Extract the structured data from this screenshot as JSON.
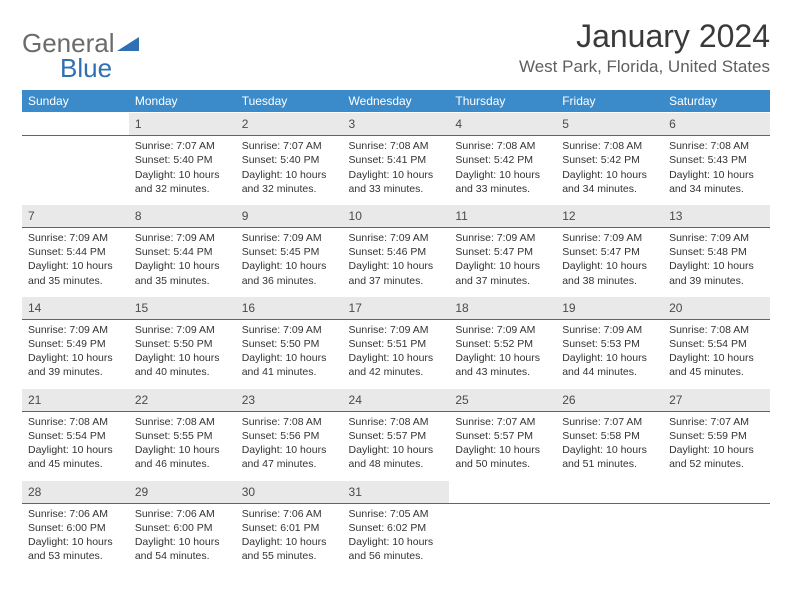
{
  "brand": {
    "part1": "General",
    "part2": "Blue",
    "color1": "#6b6b6b",
    "color2": "#2f6fb3"
  },
  "title": "January 2024",
  "location": "West Park, Florida, United States",
  "header_bg": "#3b8bca",
  "daynum_bg": "#e9e9e9",
  "rule_color": "#2f6fb3",
  "weekdays": [
    "Sunday",
    "Monday",
    "Tuesday",
    "Wednesday",
    "Thursday",
    "Friday",
    "Saturday"
  ],
  "weeks": [
    {
      "nums": [
        "",
        "1",
        "2",
        "3",
        "4",
        "5",
        "6"
      ],
      "cells": [
        null,
        {
          "sr": "Sunrise: 7:07 AM",
          "ss": "Sunset: 5:40 PM",
          "dl": "Daylight: 10 hours and 32 minutes."
        },
        {
          "sr": "Sunrise: 7:07 AM",
          "ss": "Sunset: 5:40 PM",
          "dl": "Daylight: 10 hours and 32 minutes."
        },
        {
          "sr": "Sunrise: 7:08 AM",
          "ss": "Sunset: 5:41 PM",
          "dl": "Daylight: 10 hours and 33 minutes."
        },
        {
          "sr": "Sunrise: 7:08 AM",
          "ss": "Sunset: 5:42 PM",
          "dl": "Daylight: 10 hours and 33 minutes."
        },
        {
          "sr": "Sunrise: 7:08 AM",
          "ss": "Sunset: 5:42 PM",
          "dl": "Daylight: 10 hours and 34 minutes."
        },
        {
          "sr": "Sunrise: 7:08 AM",
          "ss": "Sunset: 5:43 PM",
          "dl": "Daylight: 10 hours and 34 minutes."
        }
      ]
    },
    {
      "nums": [
        "7",
        "8",
        "9",
        "10",
        "11",
        "12",
        "13"
      ],
      "cells": [
        {
          "sr": "Sunrise: 7:09 AM",
          "ss": "Sunset: 5:44 PM",
          "dl": "Daylight: 10 hours and 35 minutes."
        },
        {
          "sr": "Sunrise: 7:09 AM",
          "ss": "Sunset: 5:44 PM",
          "dl": "Daylight: 10 hours and 35 minutes."
        },
        {
          "sr": "Sunrise: 7:09 AM",
          "ss": "Sunset: 5:45 PM",
          "dl": "Daylight: 10 hours and 36 minutes."
        },
        {
          "sr": "Sunrise: 7:09 AM",
          "ss": "Sunset: 5:46 PM",
          "dl": "Daylight: 10 hours and 37 minutes."
        },
        {
          "sr": "Sunrise: 7:09 AM",
          "ss": "Sunset: 5:47 PM",
          "dl": "Daylight: 10 hours and 37 minutes."
        },
        {
          "sr": "Sunrise: 7:09 AM",
          "ss": "Sunset: 5:47 PM",
          "dl": "Daylight: 10 hours and 38 minutes."
        },
        {
          "sr": "Sunrise: 7:09 AM",
          "ss": "Sunset: 5:48 PM",
          "dl": "Daylight: 10 hours and 39 minutes."
        }
      ]
    },
    {
      "nums": [
        "14",
        "15",
        "16",
        "17",
        "18",
        "19",
        "20"
      ],
      "cells": [
        {
          "sr": "Sunrise: 7:09 AM",
          "ss": "Sunset: 5:49 PM",
          "dl": "Daylight: 10 hours and 39 minutes."
        },
        {
          "sr": "Sunrise: 7:09 AM",
          "ss": "Sunset: 5:50 PM",
          "dl": "Daylight: 10 hours and 40 minutes."
        },
        {
          "sr": "Sunrise: 7:09 AM",
          "ss": "Sunset: 5:50 PM",
          "dl": "Daylight: 10 hours and 41 minutes."
        },
        {
          "sr": "Sunrise: 7:09 AM",
          "ss": "Sunset: 5:51 PM",
          "dl": "Daylight: 10 hours and 42 minutes."
        },
        {
          "sr": "Sunrise: 7:09 AM",
          "ss": "Sunset: 5:52 PM",
          "dl": "Daylight: 10 hours and 43 minutes."
        },
        {
          "sr": "Sunrise: 7:09 AM",
          "ss": "Sunset: 5:53 PM",
          "dl": "Daylight: 10 hours and 44 minutes."
        },
        {
          "sr": "Sunrise: 7:08 AM",
          "ss": "Sunset: 5:54 PM",
          "dl": "Daylight: 10 hours and 45 minutes."
        }
      ]
    },
    {
      "nums": [
        "21",
        "22",
        "23",
        "24",
        "25",
        "26",
        "27"
      ],
      "cells": [
        {
          "sr": "Sunrise: 7:08 AM",
          "ss": "Sunset: 5:54 PM",
          "dl": "Daylight: 10 hours and 45 minutes."
        },
        {
          "sr": "Sunrise: 7:08 AM",
          "ss": "Sunset: 5:55 PM",
          "dl": "Daylight: 10 hours and 46 minutes."
        },
        {
          "sr": "Sunrise: 7:08 AM",
          "ss": "Sunset: 5:56 PM",
          "dl": "Daylight: 10 hours and 47 minutes."
        },
        {
          "sr": "Sunrise: 7:08 AM",
          "ss": "Sunset: 5:57 PM",
          "dl": "Daylight: 10 hours and 48 minutes."
        },
        {
          "sr": "Sunrise: 7:07 AM",
          "ss": "Sunset: 5:57 PM",
          "dl": "Daylight: 10 hours and 50 minutes."
        },
        {
          "sr": "Sunrise: 7:07 AM",
          "ss": "Sunset: 5:58 PM",
          "dl": "Daylight: 10 hours and 51 minutes."
        },
        {
          "sr": "Sunrise: 7:07 AM",
          "ss": "Sunset: 5:59 PM",
          "dl": "Daylight: 10 hours and 52 minutes."
        }
      ]
    },
    {
      "nums": [
        "28",
        "29",
        "30",
        "31",
        "",
        "",
        ""
      ],
      "cells": [
        {
          "sr": "Sunrise: 7:06 AM",
          "ss": "Sunset: 6:00 PM",
          "dl": "Daylight: 10 hours and 53 minutes."
        },
        {
          "sr": "Sunrise: 7:06 AM",
          "ss": "Sunset: 6:00 PM",
          "dl": "Daylight: 10 hours and 54 minutes."
        },
        {
          "sr": "Sunrise: 7:06 AM",
          "ss": "Sunset: 6:01 PM",
          "dl": "Daylight: 10 hours and 55 minutes."
        },
        {
          "sr": "Sunrise: 7:05 AM",
          "ss": "Sunset: 6:02 PM",
          "dl": "Daylight: 10 hours and 56 minutes."
        },
        null,
        null,
        null
      ]
    }
  ]
}
